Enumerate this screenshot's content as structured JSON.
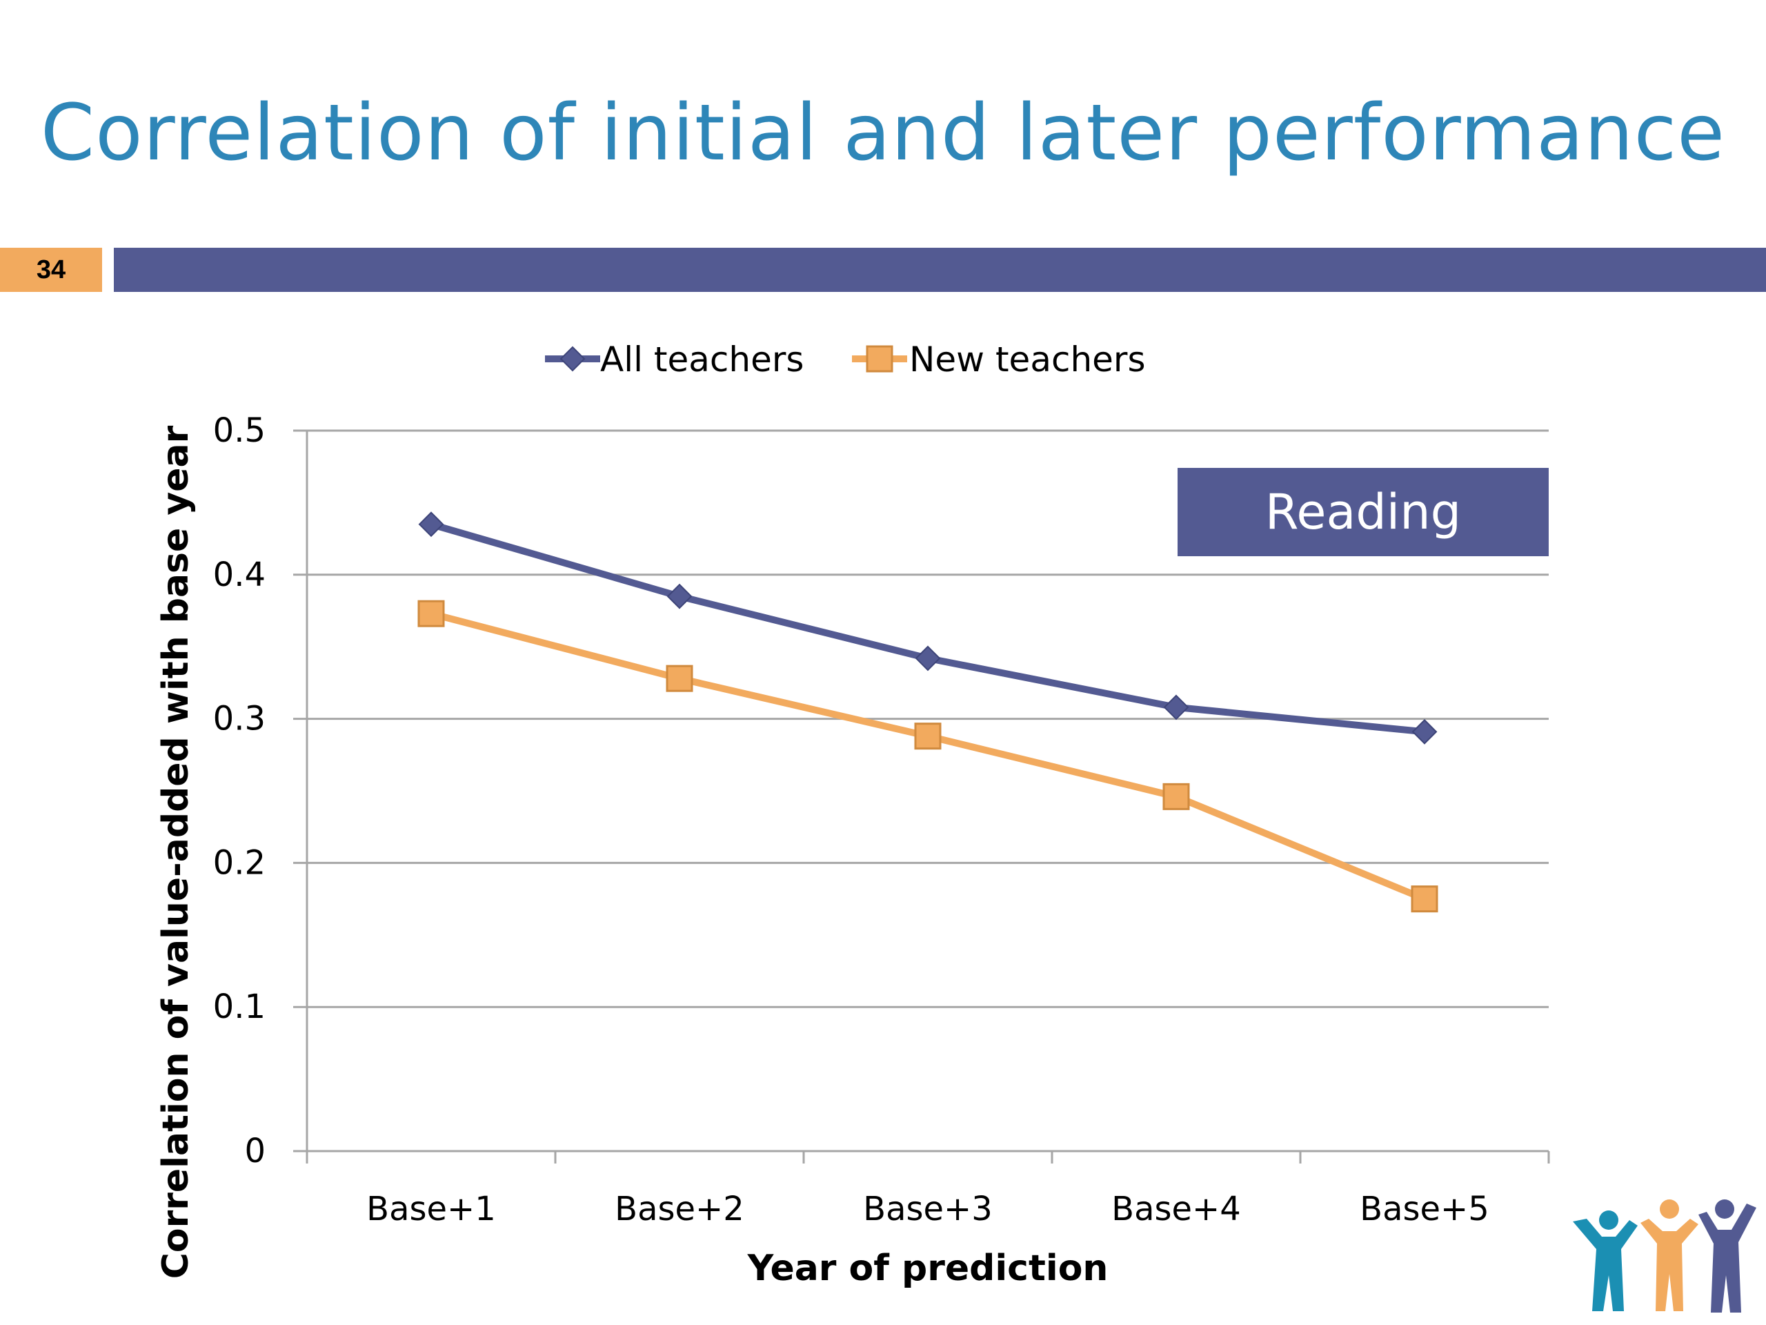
{
  "slide": {
    "title": "Correlation of initial and later performance",
    "page_number": "34"
  },
  "colors": {
    "title": "#2e86b8",
    "band": "#535a92",
    "page_number_bg": "#f2aa5e",
    "series_all": "#535a92",
    "series_new": "#f2aa5e",
    "gridline": "#a6a6a6",
    "annotation_bg": "#535a92"
  },
  "chart_data": {
    "type": "line",
    "title": "",
    "xlabel": "Year of prediction",
    "ylabel": "Correlation of value-added with base year",
    "categories": [
      "Base+1",
      "Base+2",
      "Base+3",
      "Base+4",
      "Base+5"
    ],
    "ylim": [
      0,
      0.5
    ],
    "yticks": [
      "0",
      "0.1",
      "0.2",
      "0.3",
      "0.4",
      "0.5"
    ],
    "grid": true,
    "legend_position": "top-center",
    "annotation": "Reading",
    "series": [
      {
        "name": "All teachers",
        "marker": "diamond",
        "values": [
          0.435,
          0.385,
          0.342,
          0.308,
          0.291
        ]
      },
      {
        "name": "New teachers",
        "marker": "square",
        "values": [
          0.373,
          0.328,
          0.288,
          0.246,
          0.175
        ]
      }
    ]
  },
  "logo": {
    "icon": "three-people-logo-icon"
  }
}
